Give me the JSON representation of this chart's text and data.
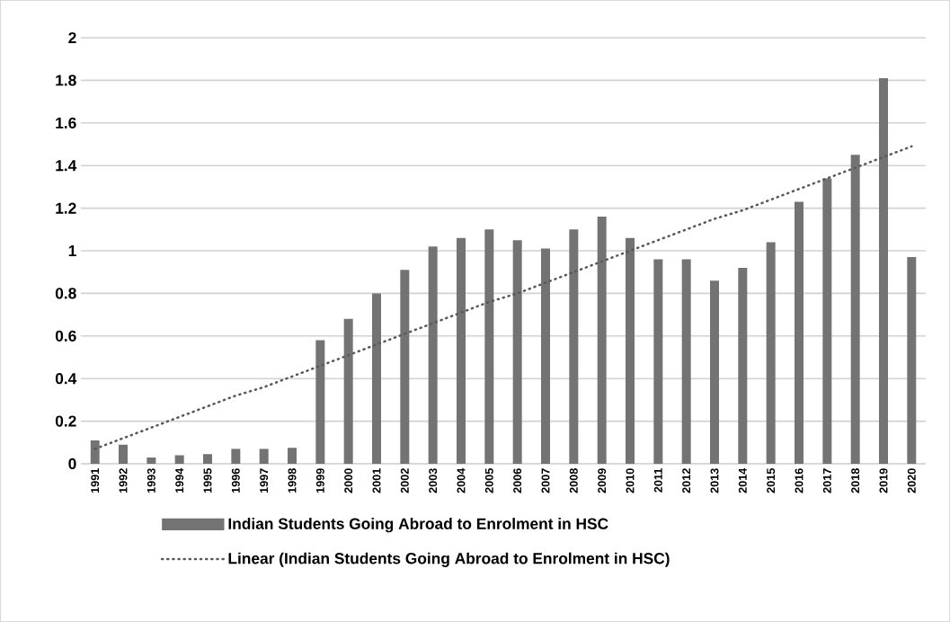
{
  "chart_data": {
    "type": "bar",
    "categories": [
      "1991",
      "1992",
      "1993",
      "1994",
      "1995",
      "1996",
      "1997",
      "1998",
      "1999",
      "2000",
      "2001",
      "2002",
      "2003",
      "2004",
      "2005",
      "2006",
      "2007",
      "2008",
      "2009",
      "2010",
      "2011",
      "2012",
      "2013",
      "2014",
      "2015",
      "2016",
      "2017",
      "2018",
      "2019",
      "2020"
    ],
    "series": [
      {
        "name": "Indian Students Going Abroad to Enrolment in HSC",
        "color": "#737373",
        "values": [
          0.11,
          0.09,
          0.03,
          0.04,
          0.045,
          0.07,
          0.07,
          0.075,
          0.58,
          0.68,
          0.8,
          0.91,
          1.02,
          1.06,
          1.1,
          1.05,
          1.01,
          1.1,
          1.16,
          1.06,
          0.96,
          0.96,
          0.86,
          0.92,
          1.04,
          1.23,
          1.34,
          1.45,
          1.81,
          0.97
        ]
      },
      {
        "name": "Linear (Indian Students Going Abroad to Enrolment in HSC)",
        "type": "line",
        "line_style": "dotted",
        "color": "#595959",
        "values": [
          0.07,
          0.12,
          0.17,
          0.22,
          0.27,
          0.32,
          0.36,
          0.41,
          0.46,
          0.51,
          0.56,
          0.61,
          0.66,
          0.71,
          0.76,
          0.8,
          0.85,
          0.9,
          0.95,
          1.0,
          1.05,
          1.1,
          1.15,
          1.19,
          1.24,
          1.29,
          1.34,
          1.39,
          1.44,
          1.49
        ]
      }
    ],
    "ylim": [
      0,
      2
    ],
    "yticks": [
      0,
      0.2,
      0.4,
      0.6,
      0.8,
      1,
      1.2,
      1.4,
      1.6,
      1.8,
      2
    ],
    "grid": "y",
    "legend": "bottom"
  }
}
